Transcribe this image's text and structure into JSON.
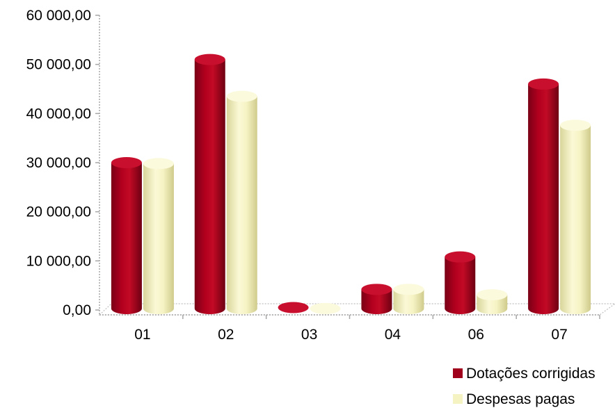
{
  "chart_data": {
    "type": "bar",
    "title": "",
    "xlabel": "",
    "ylabel": "",
    "categories": [
      "01",
      "02",
      "03",
      "04",
      "06",
      "07"
    ],
    "series": [
      {
        "name": "Dotações corrigidas",
        "values": [
          30000,
          51000,
          500,
          4200,
          10800,
          46000
        ]
      },
      {
        "name": "Despesas pagas",
        "values": [
          29800,
          43500,
          300,
          4200,
          3100,
          37600
        ]
      }
    ],
    "ylim": [
      0,
      60000
    ],
    "y_ticks": [
      "0,00",
      "10 000,00",
      "20 000,00",
      "30 000,00",
      "40 000,00",
      "50 000,00",
      "60 000,00"
    ],
    "y_tick_values": [
      0,
      10000,
      20000,
      30000,
      40000,
      50000,
      60000
    ],
    "grid": false,
    "legend_position": "bottom-right",
    "colors": {
      "series_0": "#a0001c",
      "series_1": "#f5f3c2"
    }
  }
}
